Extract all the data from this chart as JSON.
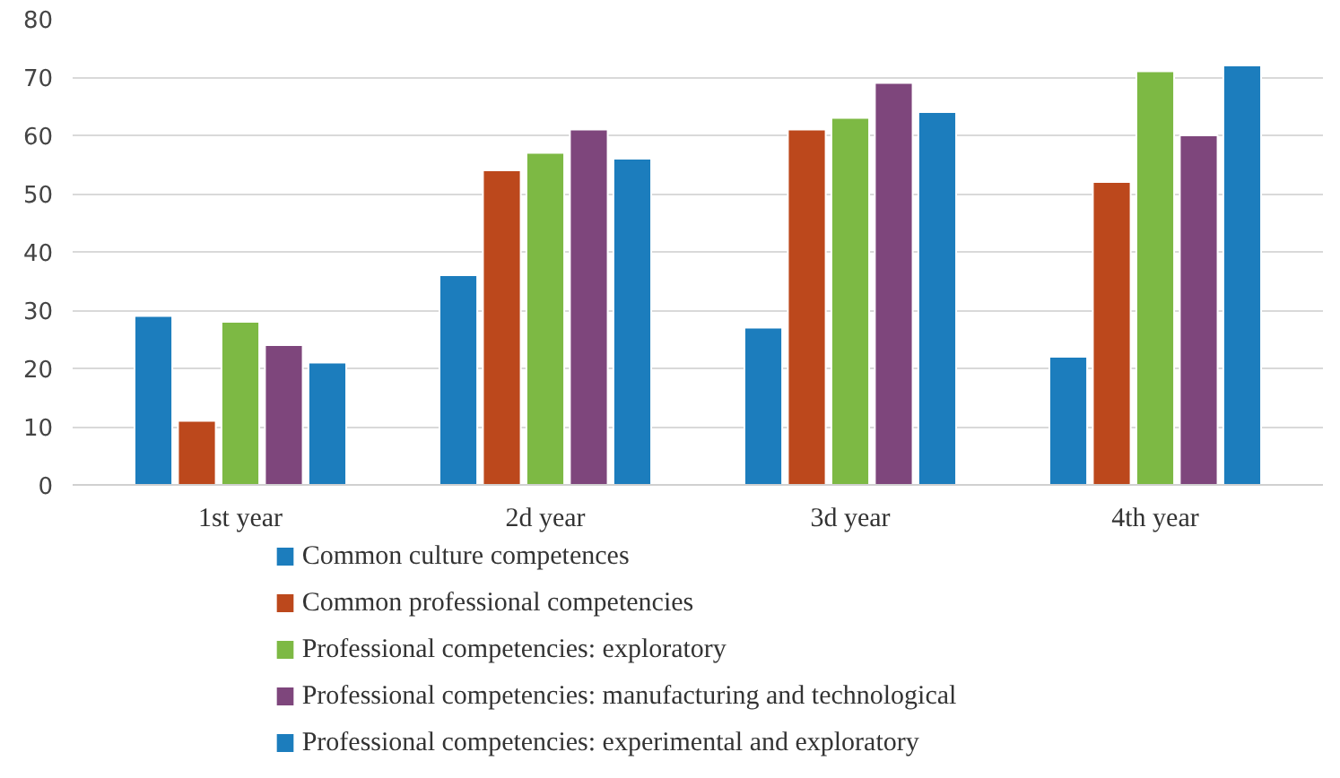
{
  "chart_data": {
    "type": "bar",
    "categories": [
      "1st year",
      "2d year",
      "3d year",
      "4th year"
    ],
    "series": [
      {
        "name": "Common culture competences",
        "color": "#1c7dbd",
        "values": [
          29,
          36,
          27,
          22
        ]
      },
      {
        "name": "Common professional competencies",
        "color": "#bc481c",
        "values": [
          11,
          54,
          61,
          52
        ]
      },
      {
        "name": "Professional competencies: exploratory",
        "color": "#7db944",
        "values": [
          28,
          57,
          63,
          71
        ]
      },
      {
        "name": "Professional competencies: manufacturing and technological",
        "color": "#7e467c",
        "values": [
          24,
          61,
          69,
          60
        ]
      },
      {
        "name": "Professional competencies: experimental and exploratory",
        "color": "#1c7dbd",
        "values": [
          21,
          56,
          64,
          72
        ]
      }
    ],
    "ylim": [
      0,
      80
    ],
    "yticks": [
      0,
      10,
      20,
      30,
      40,
      50,
      60,
      70,
      80
    ],
    "grid": "y",
    "legend": "bottom"
  }
}
